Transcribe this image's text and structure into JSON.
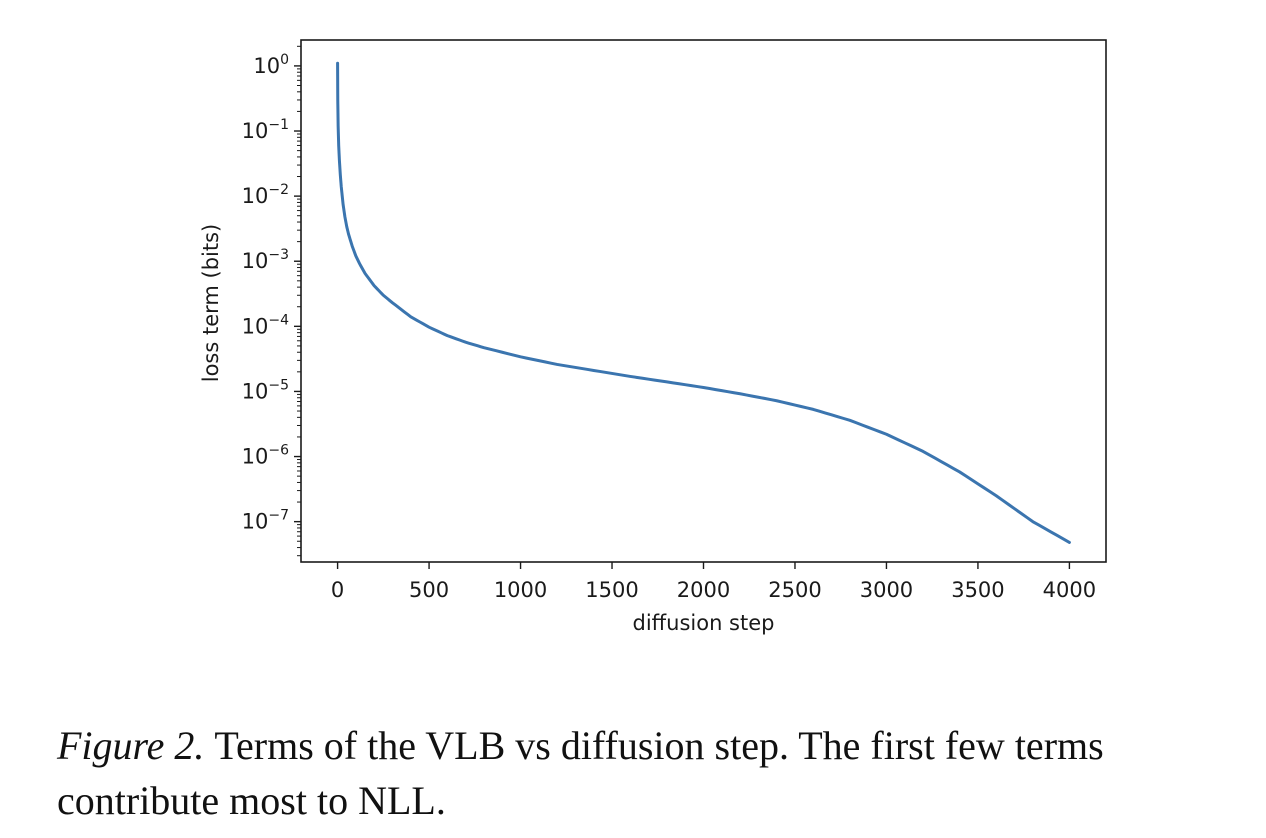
{
  "chart_data": {
    "type": "line",
    "xlabel": "diffusion step",
    "ylabel": "loss term (bits)",
    "xlim": [
      -200,
      4200
    ],
    "ylim": [
      2.4e-08,
      2.5
    ],
    "yscale": "log",
    "grid": false,
    "xticks": [
      0,
      500,
      1000,
      1500,
      2000,
      2500,
      3000,
      3500,
      4000
    ],
    "yticks": [
      {
        "exp": "0",
        "value": 1
      },
      {
        "exp": "−1",
        "value": 0.1
      },
      {
        "exp": "−2",
        "value": 0.01
      },
      {
        "exp": "−3",
        "value": 0.001
      },
      {
        "exp": "−4",
        "value": 0.0001
      },
      {
        "exp": "−5",
        "value": 1e-05
      },
      {
        "exp": "−6",
        "value": 1e-06
      },
      {
        "exp": "−7",
        "value": 1e-07
      }
    ],
    "series": [
      {
        "color": "#3b75af",
        "x": [
          0,
          1,
          3,
          6,
          10,
          15,
          20,
          30,
          40,
          50,
          60,
          70,
          80,
          100,
          120,
          150,
          200,
          250,
          300,
          400,
          500,
          600,
          700,
          800,
          1000,
          1200,
          1400,
          1600,
          1800,
          2000,
          2200,
          2400,
          2600,
          2800,
          3000,
          3200,
          3400,
          3600,
          3800,
          4000
        ],
        "y": [
          1.1,
          0.3,
          0.12,
          0.06,
          0.035,
          0.021,
          0.014,
          0.0075,
          0.0048,
          0.0034,
          0.0026,
          0.0021,
          0.0017,
          0.0012,
          0.00092,
          0.00065,
          0.00042,
          0.0003,
          0.00023,
          0.00014,
          9.7e-05,
          7.2e-05,
          5.7e-05,
          4.7e-05,
          3.4e-05,
          2.6e-05,
          2.1e-05,
          1.7e-05,
          1.4e-05,
          1.15e-05,
          9.2e-06,
          7.2e-06,
          5.3e-06,
          3.6e-06,
          2.2e-06,
          1.2e-06,
          5.8e-07,
          2.5e-07,
          1e-07,
          4.8e-08
        ]
      }
    ]
  },
  "caption": {
    "label": "Figure 2.",
    "text": "Terms of the VLB vs diffusion step. The first few terms contribute most to NLL."
  }
}
